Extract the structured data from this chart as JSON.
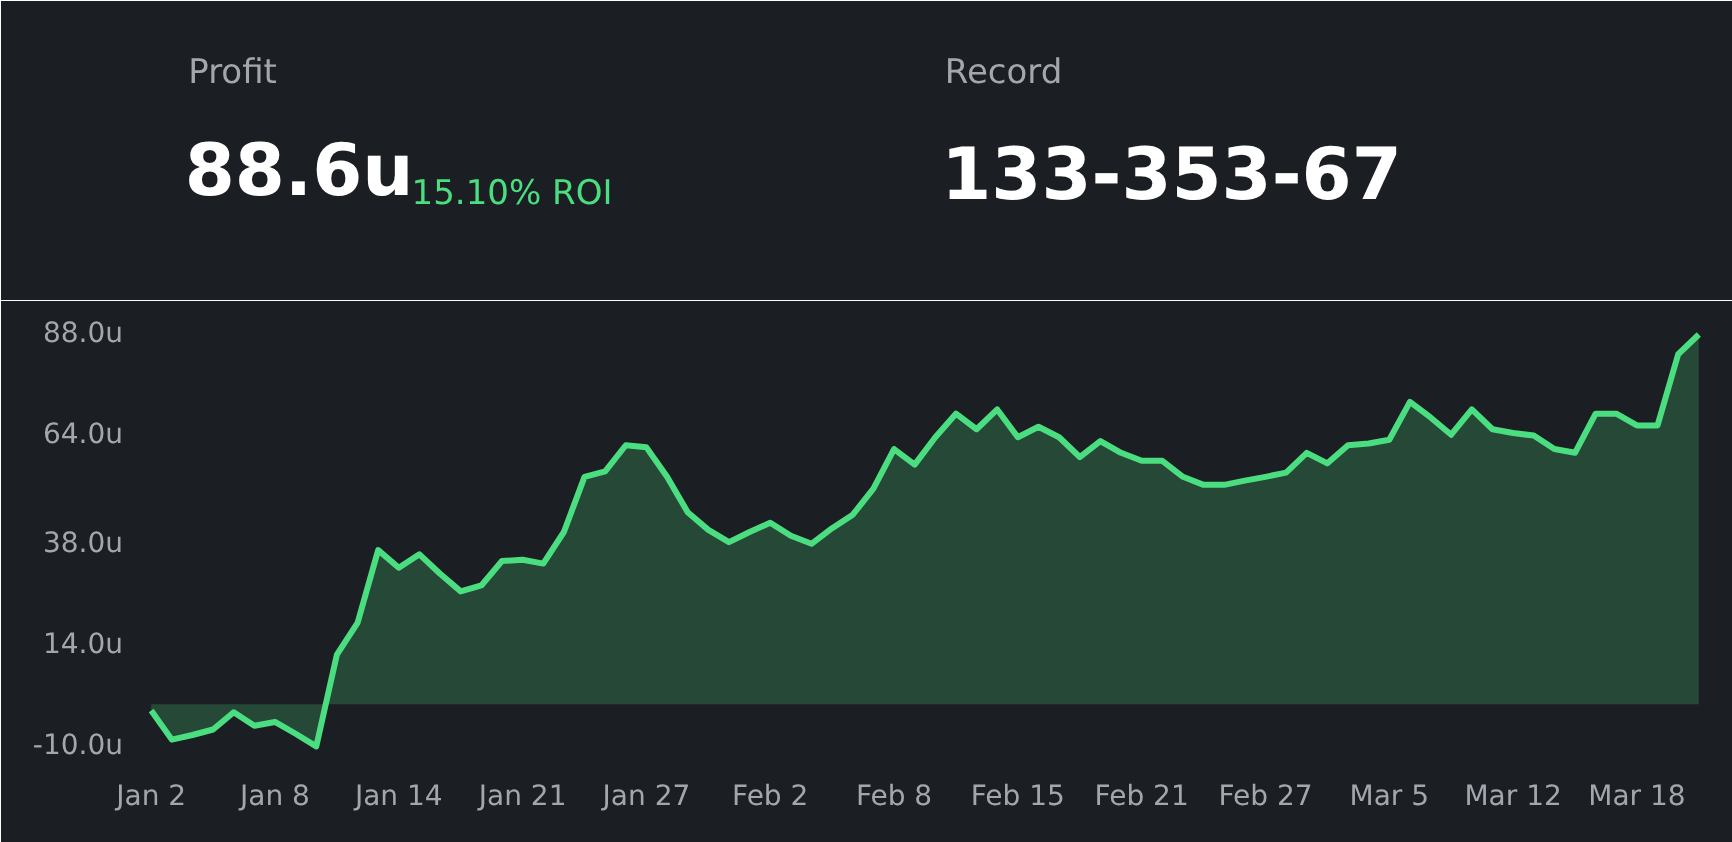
{
  "chart_data": {
    "type": "area",
    "annotations": [
      "Profit",
      "88.6u",
      "15.10% ROI",
      "Record",
      "133-353-67"
    ],
    "categories": [
      "Jan 2",
      null,
      null,
      null,
      null,
      null,
      "Jan 8",
      null,
      null,
      null,
      null,
      null,
      "Jan 14",
      null,
      null,
      null,
      null,
      null,
      "Jan 21",
      null,
      null,
      null,
      null,
      null,
      "Jan 27",
      null,
      null,
      null,
      null,
      null,
      "Feb 2",
      null,
      null,
      null,
      null,
      null,
      "Feb 8",
      null,
      null,
      null,
      null,
      null,
      "Feb 15",
      null,
      null,
      null,
      null,
      null,
      "Feb 21",
      null,
      null,
      null,
      null,
      null,
      "Feb 27",
      null,
      null,
      null,
      null,
      null,
      "Mar 5",
      null,
      null,
      null,
      null,
      null,
      "Mar 12",
      null,
      null,
      null,
      null,
      null,
      "Mar 18",
      null,
      null,
      null
    ],
    "series": [
      {
        "color": "#4ade80",
        "values": [
          -1.5,
          -8.4,
          -7.3,
          -6,
          -1.9,
          -5.1,
          -4.2,
          -7,
          -10,
          11.8,
          19.3,
          36.6,
          32.4,
          35.6,
          31,
          26.8,
          28.2,
          34,
          34.3,
          33.4,
          40.9,
          54,
          55.3,
          61.5,
          61,
          54,
          45.6,
          41.4,
          38.5,
          40.9,
          43.1,
          40,
          38.1,
          41.8,
          45,
          51.2,
          60.6,
          56.9,
          63.4,
          69,
          65.3,
          70,
          63.4,
          65.9,
          63.4,
          58.7,
          62.5,
          59.7,
          57.8,
          57.8,
          54,
          52.1,
          52.1,
          53.1,
          54,
          55,
          59.7,
          57.2,
          61.5,
          61.9,
          62.8,
          71.8,
          68.1,
          64,
          70,
          65.3,
          64.4,
          63.8,
          60.6,
          59.7,
          69,
          69,
          66.2,
          66.2,
          83.1,
          87.8
        ]
      }
    ],
    "ylim": [
      -13,
      91
    ],
    "yticks": [
      {
        "value": -10,
        "label": "-10.0u"
      },
      {
        "value": 14,
        "label": "14.0u"
      },
      {
        "value": 38,
        "label": "38.0u"
      },
      {
        "value": 64,
        "label": "64.0u"
      },
      {
        "value": 88,
        "label": "88.0u"
      }
    ],
    "grid": false
  }
}
